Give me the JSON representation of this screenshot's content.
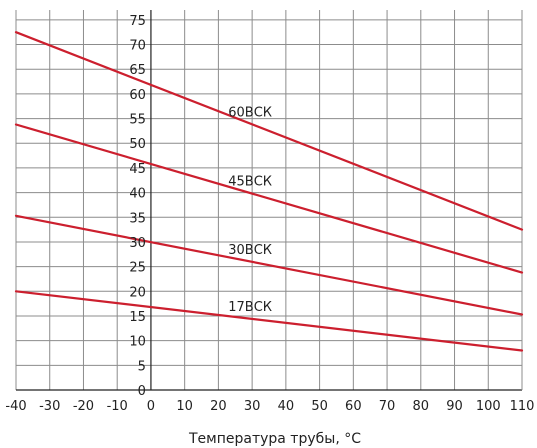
{
  "chart_data": {
    "type": "line",
    "title": "",
    "xlabel": "Температура трубы, °C",
    "ylabel": "",
    "xlim": [
      -40,
      110
    ],
    "ylim": [
      0,
      77
    ],
    "x_ticks": [
      -40,
      -30,
      -20,
      -10,
      0,
      10,
      20,
      30,
      40,
      50,
      60,
      70,
      80,
      90,
      100,
      110
    ],
    "y_ticks": [
      0,
      5,
      10,
      15,
      20,
      25,
      30,
      35,
      40,
      45,
      50,
      55,
      60,
      65,
      70,
      75
    ],
    "grid": true,
    "line_color": "#cc1f2e",
    "series": [
      {
        "name": "60ВСК",
        "x": [
          -40,
          110
        ],
        "y": [
          72.5,
          32.5
        ]
      },
      {
        "name": "45ВСК",
        "x": [
          -40,
          110
        ],
        "y": [
          53.8,
          23.8
        ]
      },
      {
        "name": "30ВСК",
        "x": [
          -40,
          110
        ],
        "y": [
          35.3,
          15.3
        ]
      },
      {
        "name": "17ВСК",
        "x": [
          -40,
          110
        ],
        "y": [
          20.0,
          8.0
        ]
      }
    ]
  }
}
